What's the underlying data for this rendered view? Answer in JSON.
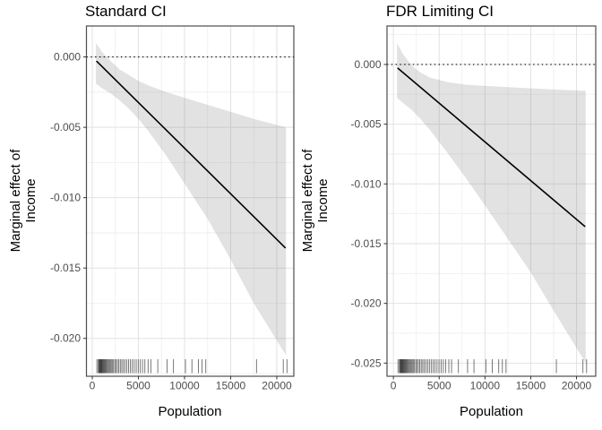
{
  "style": {
    "background": "#ffffff",
    "band_fill": "rgba(125,125,125,0.22)",
    "line_color": "#000000",
    "zero_line_color": "#000000",
    "panel_border": "#4d4d4d",
    "grid_major": "#e2e2e2",
    "grid_minor": "#eeeeee",
    "tick_mark": "#333333",
    "tick_label": "#4d4d4d",
    "rug_color": "rgba(25,25,25,0.65)"
  },
  "chart_data": [
    {
      "id": "standard_ci",
      "type": "line",
      "title": "Standard CI",
      "xlabel": "Population",
      "ylabel": "Marginal effect of\nIncome",
      "x_ticks": [
        0,
        5000,
        10000,
        15000,
        20000
      ],
      "x_tick_labels": [
        "0",
        "5000",
        "10000",
        "15000",
        "20000"
      ],
      "x_minor": [
        2500,
        7500,
        12500,
        17500
      ],
      "y_ticks": [
        0,
        -0.005,
        -0.01,
        -0.015,
        -0.02
      ],
      "y_tick_labels": [
        "0.000",
        "-0.005",
        "-0.010",
        "-0.015",
        "-0.020"
      ],
      "y_minor": [
        -0.0025,
        -0.0075,
        -0.0125,
        -0.0175,
        -0.0225
      ],
      "xlim": [
        -631,
        21845
      ],
      "ylim": [
        -0.02269,
        0.0022
      ],
      "zero_reference": 0,
      "line": {
        "x": [
          500,
          20900
        ],
        "y": [
          -0.00032,
          -0.01355
        ]
      },
      "band": {
        "x": [
          400,
          1000,
          2000,
          3000,
          4000,
          5000,
          6000,
          8000,
          10000,
          12500,
          15000,
          17500,
          21000
        ],
        "upper": [
          0.001,
          0.0004,
          -0.0003,
          -0.0009,
          -0.0013,
          -0.0017,
          -0.002,
          -0.0025,
          -0.0029,
          -0.0034,
          -0.0039,
          -0.0044,
          -0.005
        ],
        "lower": [
          -0.0019,
          -0.0022,
          -0.0026,
          -0.0031,
          -0.0037,
          -0.0044,
          -0.0052,
          -0.007,
          -0.009,
          -0.0115,
          -0.0144,
          -0.0175,
          -0.0212
        ]
      },
      "rug_x": [
        500,
        650,
        720,
        780,
        830,
        880,
        930,
        980,
        1030,
        1080,
        1140,
        1200,
        1270,
        1340,
        1410,
        1490,
        1570,
        1660,
        1760,
        1860,
        1960,
        2060,
        2170,
        2300,
        2440,
        2580,
        2730,
        2880,
        3040,
        3200,
        3370,
        3550,
        3740,
        3930,
        4130,
        4330,
        4540,
        4760,
        4980,
        5210,
        5450,
        5700,
        6050,
        6350,
        7100,
        8100,
        8800,
        10100,
        10800,
        11500,
        11900,
        12300,
        17800,
        20700,
        21100
      ],
      "grid": true,
      "legend": false
    },
    {
      "id": "fdr_limiting_ci",
      "type": "line",
      "title": "FDR Limiting CI",
      "xlabel": "Population",
      "ylabel": "Marginal effect of\nIncome",
      "x_ticks": [
        0,
        5000,
        10000,
        15000,
        20000
      ],
      "x_tick_labels": [
        "0",
        "5000",
        "10000",
        "15000",
        "20000"
      ],
      "x_minor": [
        2500,
        7500,
        12500,
        17500
      ],
      "y_ticks": [
        0,
        -0.005,
        -0.01,
        -0.015,
        -0.02,
        -0.025
      ],
      "y_tick_labels": [
        "0.000",
        "-0.005",
        "-0.010",
        "-0.015",
        "-0.020",
        "-0.025"
      ],
      "y_minor": [
        0.0025,
        -0.0025,
        -0.0075,
        -0.0125,
        -0.0175,
        -0.0225
      ],
      "xlim": [
        -700,
        22100
      ],
      "ylim": [
        -0.0261,
        0.00322
      ],
      "zero_reference": 0,
      "line": {
        "x": [
          500,
          20900
        ],
        "y": [
          -0.00032,
          -0.01355
        ]
      },
      "band": {
        "x": [
          400,
          1000,
          2000,
          3000,
          4000,
          5000,
          6000,
          8000,
          10000,
          12500,
          15000,
          17500,
          21000
        ],
        "upper": [
          0.0018,
          0.0009,
          -0.0001,
          -0.0007,
          -0.0011,
          -0.0013,
          -0.0015,
          -0.0017,
          -0.0018,
          -0.0019,
          -0.002,
          -0.0021,
          -0.0022
        ],
        "lower": [
          -0.0028,
          -0.0032,
          -0.0038,
          -0.0046,
          -0.0055,
          -0.0065,
          -0.0075,
          -0.0096,
          -0.0118,
          -0.0146,
          -0.0174,
          -0.0206,
          -0.025
        ]
      },
      "rug_x": [
        500,
        650,
        720,
        780,
        830,
        880,
        930,
        980,
        1030,
        1080,
        1140,
        1200,
        1270,
        1340,
        1410,
        1490,
        1570,
        1660,
        1760,
        1860,
        1960,
        2060,
        2170,
        2300,
        2440,
        2580,
        2730,
        2880,
        3040,
        3200,
        3370,
        3550,
        3740,
        3930,
        4130,
        4330,
        4540,
        4760,
        4980,
        5210,
        5450,
        5700,
        6050,
        6350,
        7100,
        8100,
        8800,
        10100,
        10800,
        11500,
        11900,
        12300,
        17800,
        20700,
        21100
      ],
      "grid": true,
      "legend": false
    }
  ]
}
